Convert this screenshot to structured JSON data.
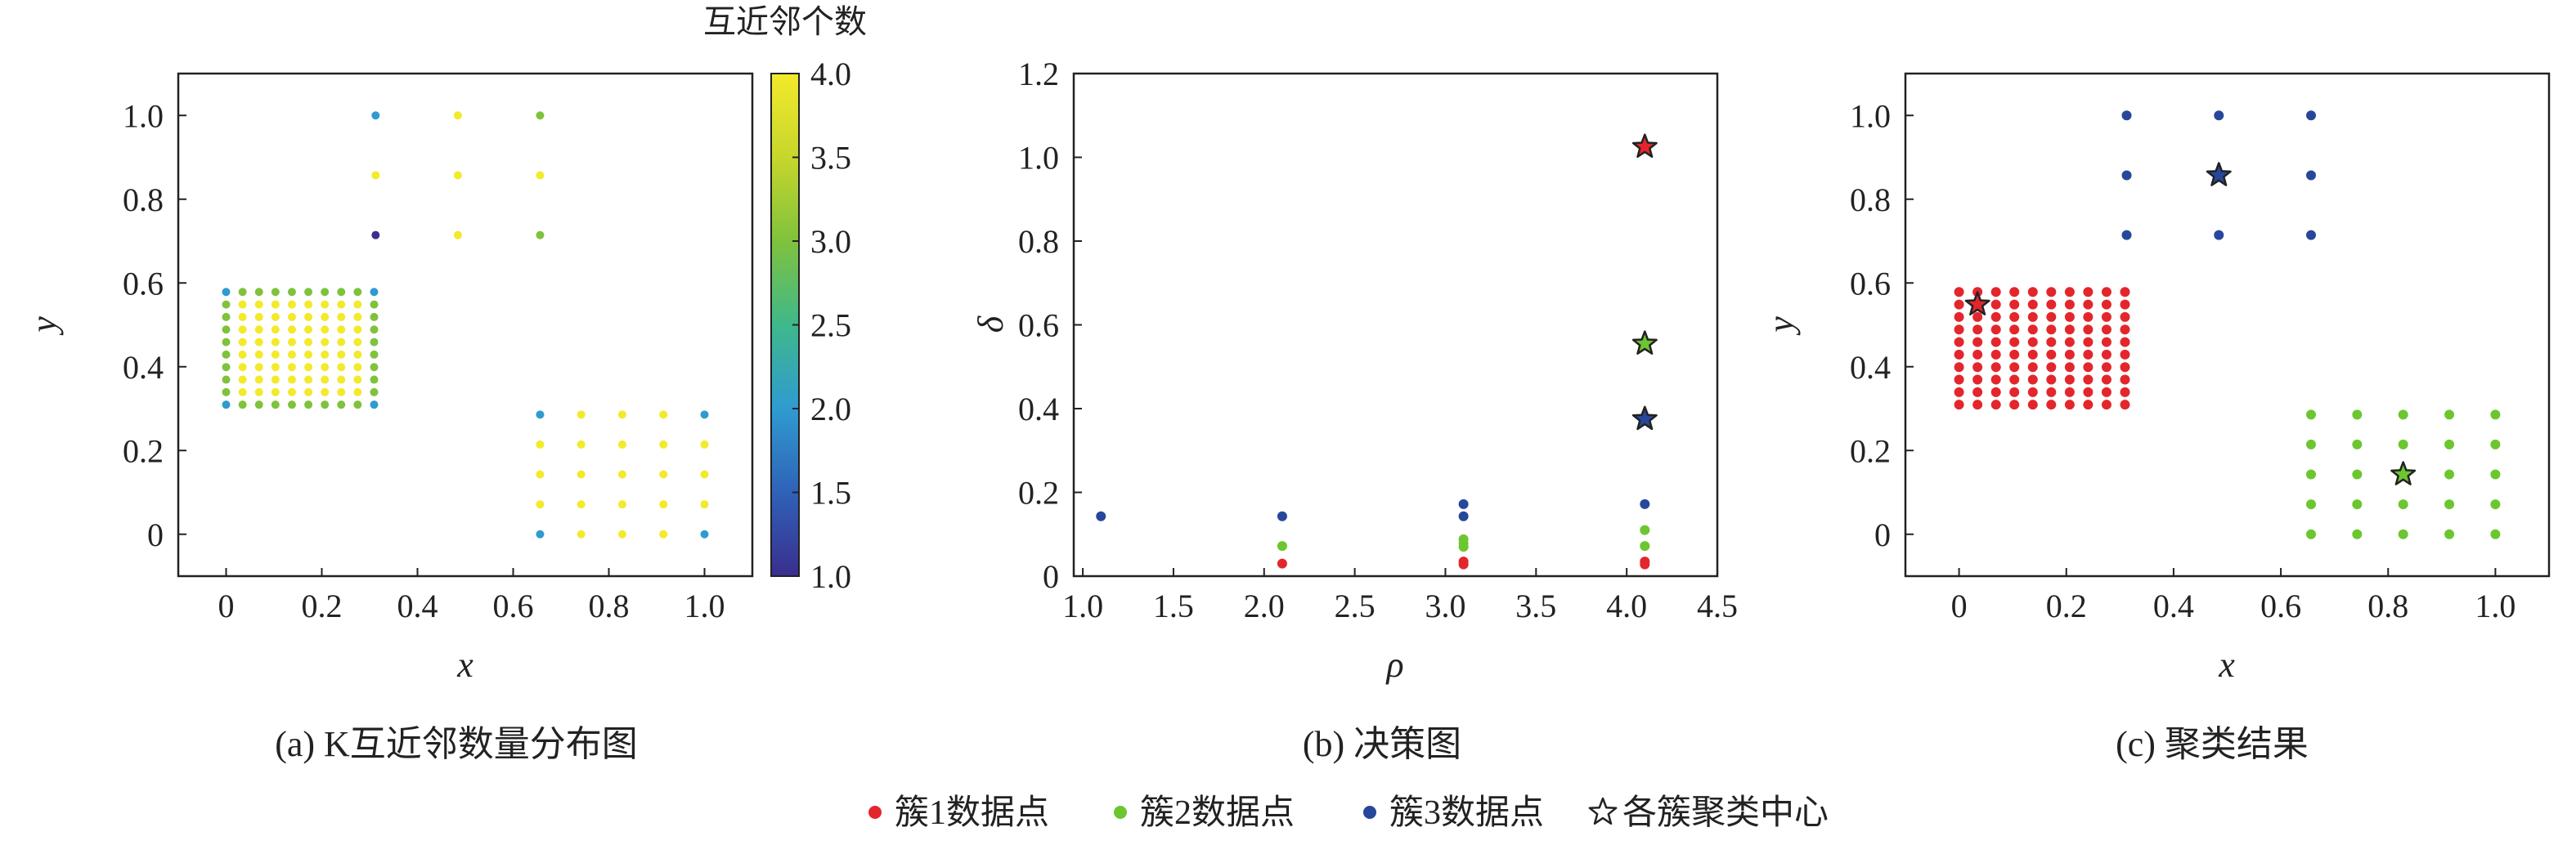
{
  "colors": {
    "cluster1": "#e3262c",
    "cluster2": "#6cc630",
    "cluster3": "#27479b",
    "colormap": [
      "#3a2e8e",
      "#2f62b8",
      "#2f9bd0",
      "#3fb88b",
      "#7fc23c",
      "#c7d62c",
      "#f2ea2b"
    ]
  },
  "legend": [
    {
      "marker": "dot",
      "color_key": "cluster1",
      "label": "簇1数据点"
    },
    {
      "marker": "dot",
      "color_key": "cluster2",
      "label": "簇2数据点"
    },
    {
      "marker": "dot",
      "color_key": "cluster3",
      "label": "簇3数据点"
    },
    {
      "marker": "star",
      "color_key": "none",
      "label": "各簇聚类中心"
    }
  ],
  "chart_data": [
    {
      "id": "a",
      "type": "scatter",
      "caption": "(a) K互近邻数量分布图",
      "xlabel": "x",
      "ylabel": "y",
      "xlim": [
        -0.1,
        1.1
      ],
      "ylim": [
        -0.1,
        1.1
      ],
      "xticks": [
        0,
        0.2,
        0.4,
        0.6,
        0.8,
        1.0
      ],
      "xtick_labels": [
        "0",
        "0.2",
        "0.4",
        "0.6",
        "0.8",
        "1.0"
      ],
      "yticks": [
        0,
        0.2,
        0.4,
        0.6,
        0.8,
        1.0
      ],
      "ytick_labels": [
        "0",
        "0.2",
        "0.4",
        "0.6",
        "0.8",
        "1.0"
      ],
      "colorbar": {
        "title": "互近邻个数",
        "range": [
          1.0,
          4.0
        ],
        "ticks": [
          1.0,
          1.5,
          2.0,
          2.5,
          3.0,
          3.5,
          4.0
        ],
        "tick_labels": [
          "1.0",
          "1.5",
          "2.0",
          "2.5",
          "3.0",
          "3.5",
          "4.0"
        ]
      },
      "groups": [
        {
          "name": "block",
          "x_values": [
            0,
            0.0344,
            0.0688,
            0.1031,
            0.1375,
            0.1719,
            0.2063,
            0.2406,
            0.275,
            0.3094
          ],
          "y_values": [
            0.3094,
            0.3393,
            0.3692,
            0.3991,
            0.429,
            0.4589,
            0.4888,
            0.5187,
            0.5486,
            0.5785
          ],
          "corner_value": 2.0,
          "edge_value": 3.0,
          "interior_value": 4.0
        },
        {
          "name": "grid",
          "x_values": [
            0.6563,
            0.7422,
            0.8281,
            0.9141,
            1.0
          ],
          "y_values": [
            0,
            0.0714,
            0.1429,
            0.2143,
            0.2857
          ],
          "corner_value": 2.0,
          "edge_value": 4.0,
          "interior_value": 4.0
        }
      ],
      "points": [
        {
          "x": 0.3125,
          "y": 1.0,
          "v": 2.0
        },
        {
          "x": 0.4844,
          "y": 1.0,
          "v": 4.0
        },
        {
          "x": 0.6563,
          "y": 1.0,
          "v": 3.0
        },
        {
          "x": 0.3125,
          "y": 0.8571,
          "v": 4.0
        },
        {
          "x": 0.4844,
          "y": 0.8571,
          "v": 4.0
        },
        {
          "x": 0.6563,
          "y": 0.8571,
          "v": 4.0
        },
        {
          "x": 0.3125,
          "y": 0.7143,
          "v": 1.0
        },
        {
          "x": 0.4844,
          "y": 0.7143,
          "v": 4.0
        },
        {
          "x": 0.6563,
          "y": 0.7143,
          "v": 3.0
        }
      ]
    },
    {
      "id": "b",
      "type": "scatter",
      "caption": "(b) 决策图",
      "xlabel": "ρ",
      "ylabel": "δ",
      "xlim": [
        0.95,
        4.5
      ],
      "ylim": [
        0,
        1.2
      ],
      "xticks": [
        1.0,
        1.5,
        2.0,
        2.5,
        3.0,
        3.5,
        4.0,
        4.5
      ],
      "xtick_labels": [
        "1.0",
        "1.5",
        "2.0",
        "2.5",
        "3.0",
        "3.5",
        "4.0",
        "4.5"
      ],
      "yticks": [
        0,
        0.2,
        0.4,
        0.6,
        0.8,
        1.0,
        1.2
      ],
      "ytick_labels": [
        "0",
        "0.2",
        "0.4",
        "0.6",
        "0.8",
        "1.0",
        "1.2"
      ],
      "points": [
        {
          "x": 1.1,
          "y": 0.143,
          "cluster": 3
        },
        {
          "x": 2.1,
          "y": 0.143,
          "cluster": 3
        },
        {
          "x": 2.1,
          "y": 0.072,
          "cluster": 2
        },
        {
          "x": 2.1,
          "y": 0.03,
          "cluster": 1
        },
        {
          "x": 3.1,
          "y": 0.172,
          "cluster": 3
        },
        {
          "x": 3.1,
          "y": 0.143,
          "cluster": 3
        },
        {
          "x": 3.1,
          "y": 0.088,
          "cluster": 2
        },
        {
          "x": 3.1,
          "y": 0.078,
          "cluster": 2
        },
        {
          "x": 3.1,
          "y": 0.07,
          "cluster": 2
        },
        {
          "x": 3.1,
          "y": 0.035,
          "cluster": 1
        },
        {
          "x": 3.1,
          "y": 0.028,
          "cluster": 1
        },
        {
          "x": 4.1,
          "y": 0.172,
          "cluster": 3
        },
        {
          "x": 4.1,
          "y": 0.11,
          "cluster": 2
        },
        {
          "x": 4.1,
          "y": 0.072,
          "cluster": 2
        },
        {
          "x": 4.1,
          "y": 0.035,
          "cluster": 1
        },
        {
          "x": 4.1,
          "y": 0.028,
          "cluster": 1
        }
      ],
      "centers": [
        {
          "x": 4.1,
          "y": 1.025,
          "cluster": 1
        },
        {
          "x": 4.1,
          "y": 0.555,
          "cluster": 2
        },
        {
          "x": 4.1,
          "y": 0.375,
          "cluster": 3
        }
      ]
    },
    {
      "id": "c",
      "type": "scatter",
      "caption": "(c) 聚类结果",
      "xlabel": "x",
      "ylabel": "y",
      "xlim": [
        -0.1,
        1.1
      ],
      "ylim": [
        -0.1,
        1.1
      ],
      "xticks": [
        0,
        0.2,
        0.4,
        0.6,
        0.8,
        1.0
      ],
      "xtick_labels": [
        "0",
        "0.2",
        "0.4",
        "0.6",
        "0.8",
        "1.0"
      ],
      "yticks": [
        0,
        0.2,
        0.4,
        0.6,
        0.8,
        1.0
      ],
      "ytick_labels": [
        "0",
        "0.2",
        "0.4",
        "0.6",
        "0.8",
        "1.0"
      ],
      "groups": [
        {
          "cluster": 1,
          "x_values": [
            0,
            0.0344,
            0.0688,
            0.1031,
            0.1375,
            0.1719,
            0.2063,
            0.2406,
            0.275,
            0.3094
          ],
          "y_values": [
            0.3094,
            0.3393,
            0.3692,
            0.3991,
            0.429,
            0.4589,
            0.4888,
            0.5187,
            0.5486,
            0.5785
          ]
        },
        {
          "cluster": 2,
          "x_values": [
            0.6563,
            0.7422,
            0.8281,
            0.9141,
            1.0
          ],
          "y_values": [
            0,
            0.0714,
            0.1429,
            0.2143,
            0.2857
          ]
        },
        {
          "cluster": 3,
          "x_values": [
            0.3125,
            0.4844,
            0.6563
          ],
          "y_values": [
            0.7143,
            0.8571,
            1.0
          ]
        }
      ],
      "centers": [
        {
          "x": 0.0344,
          "y": 0.5486,
          "cluster": 1
        },
        {
          "x": 0.8281,
          "y": 0.1429,
          "cluster": 2
        },
        {
          "x": 0.4844,
          "y": 0.8571,
          "cluster": 3
        }
      ]
    }
  ]
}
